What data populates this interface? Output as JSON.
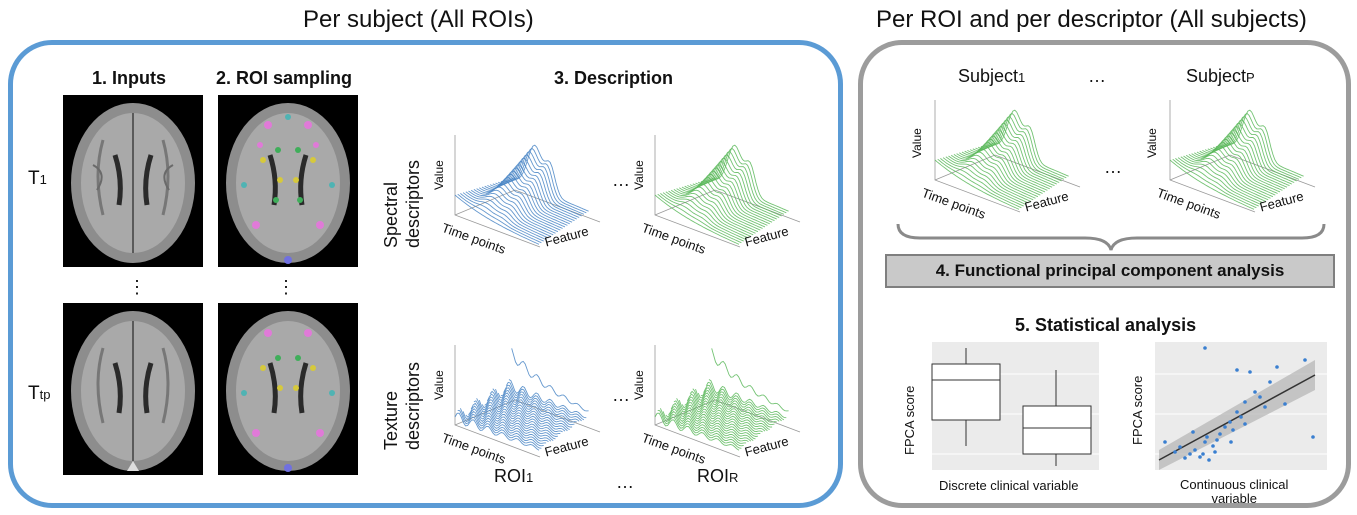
{
  "titles": {
    "left": "Per subject (All ROIs)",
    "right": "Per ROI and per descriptor (All subjects)"
  },
  "steps": {
    "inputs": "1. Inputs",
    "roi_sampling": "2. ROI sampling",
    "description": "3. Description",
    "fpca": "4. Functional principal component analysis",
    "stats": "5. Statistical analysis"
  },
  "timepoints": {
    "first": "T1",
    "last": "Ttp",
    "ellipsis": "⋮"
  },
  "descriptors": {
    "spectral": [
      "Spectral",
      "descriptors"
    ],
    "texture": [
      "Texture",
      "descriptors"
    ]
  },
  "axes": {
    "value": "Value",
    "time": "Time points",
    "feature": "Feature"
  },
  "rois": {
    "first": "ROI1",
    "last": "ROIR",
    "ellipsis": "…"
  },
  "subjects": {
    "first": "Subject1",
    "last": "SubjectP",
    "ellipsis": "…"
  },
  "plot_ellipsis": "…",
  "stats_plots": {
    "boxplot": {
      "ylabel": "FPCA score",
      "xlabel": "Discrete clinical variable"
    },
    "scatter": {
      "ylabel": "FPCA score",
      "xlabel": [
        "Continuous clinical",
        "variable"
      ]
    }
  },
  "colors": {
    "blue": "#4a86c5",
    "green": "#5cb85c",
    "left_border": "#5b9bd5",
    "right_border": "#9c9c9c",
    "pink": "#e07ad8",
    "yellow": "#d6c93c",
    "teal": "#4fb3b3"
  }
}
